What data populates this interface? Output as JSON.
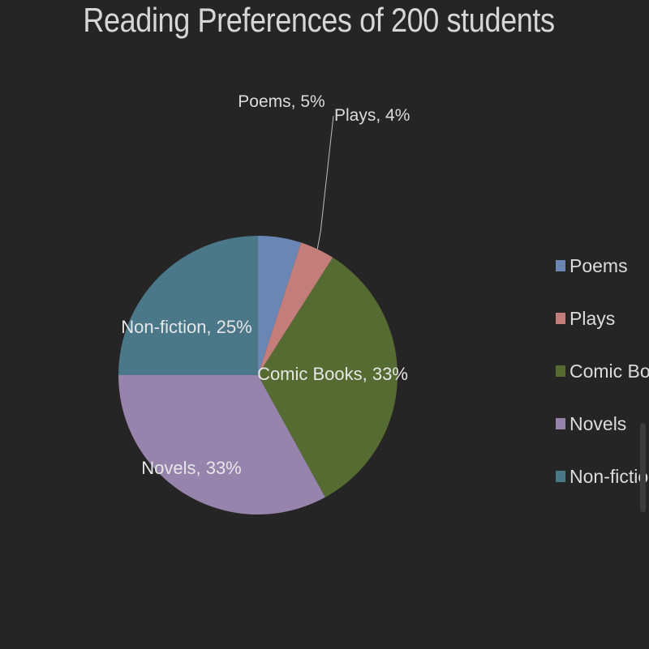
{
  "chart_data": {
    "type": "pie",
    "title": "Reading Preferences of 200 students",
    "categories": [
      "Poems",
      "Plays",
      "Comic Books",
      "Novels",
      "Non-fiction"
    ],
    "values": [
      5,
      4,
      33,
      33,
      25
    ],
    "unit": "%",
    "slice_labels": [
      "Poems, 5%",
      "Plays, 4%",
      "Comic Books, 33%",
      "Novels, 33%",
      "Non-fiction, 25%"
    ],
    "colors": [
      "#6a86b4",
      "#c37d7a",
      "#566b31",
      "#9784ac",
      "#4b7889"
    ],
    "legend_placement": "right",
    "start_angle": "top, clockwise"
  }
}
